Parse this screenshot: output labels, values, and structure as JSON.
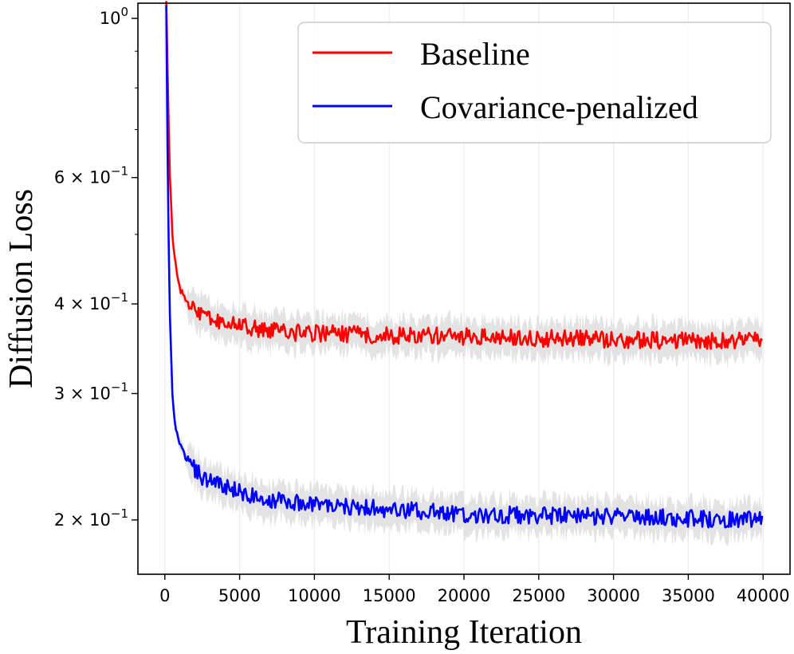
{
  "chart_data": {
    "type": "line",
    "xlabel": "Training Iteration",
    "ylabel": "Diffusion Loss",
    "xlim": [
      -1800,
      41800
    ],
    "ylim": [
      0.168,
      1.05
    ],
    "yscale": "log",
    "grid": "vertical",
    "legend_position": "top-right",
    "x_ticks": [
      0,
      5000,
      10000,
      15000,
      20000,
      25000,
      30000,
      35000,
      40000
    ],
    "x_tick_labels": [
      "0",
      "5000",
      "10000",
      "15000",
      "20000",
      "25000",
      "30000",
      "35000",
      "40000"
    ],
    "y_ticks": [
      {
        "value": 1.0,
        "base": "10",
        "exp": "0"
      },
      {
        "value": 0.6,
        "base": "6 × 10",
        "exp": "−1"
      },
      {
        "value": 0.4,
        "base": "4 × 10",
        "exp": "−1"
      },
      {
        "value": 0.3,
        "base": "3 × 10",
        "exp": "−1"
      },
      {
        "value": 0.2,
        "base": "2 × 10",
        "exp": "−1"
      }
    ],
    "y_minor_ticks": [
      0.9,
      0.8,
      0.7,
      0.5
    ],
    "series": [
      {
        "name": "Baseline",
        "color": "#ff0000",
        "band_color": "#e3e3e3",
        "x": [
          100,
          200,
          300,
          400,
          500,
          600,
          800,
          1000,
          1300,
          1600,
          2000,
          2500,
          3000,
          3500,
          4000,
          5000,
          6000,
          7000,
          8000,
          10000,
          12000,
          15000,
          18000,
          20000,
          25000,
          30000,
          35000,
          40000
        ],
        "values": [
          1.05,
          0.82,
          0.64,
          0.56,
          0.5,
          0.47,
          0.44,
          0.42,
          0.41,
          0.4,
          0.39,
          0.385,
          0.38,
          0.378,
          0.375,
          0.372,
          0.37,
          0.368,
          0.366,
          0.364,
          0.363,
          0.362,
          0.361,
          0.36,
          0.358,
          0.357,
          0.356,
          0.355
        ]
      },
      {
        "name": "Covariance-penalized",
        "color": "#0000ff",
        "band_color": "#e3e3e3",
        "x": [
          100,
          200,
          300,
          400,
          500,
          600,
          800,
          1000,
          1300,
          1600,
          2000,
          2500,
          3000,
          3500,
          4000,
          5000,
          6000,
          7000,
          8000,
          10000,
          12000,
          15000,
          18000,
          20000,
          25000,
          30000,
          35000,
          40000
        ],
        "values": [
          1.05,
          0.6,
          0.42,
          0.35,
          0.3,
          0.28,
          0.265,
          0.255,
          0.247,
          0.24,
          0.235,
          0.23,
          0.227,
          0.224,
          0.222,
          0.219,
          0.216,
          0.214,
          0.213,
          0.211,
          0.209,
          0.207,
          0.205,
          0.204,
          0.203,
          0.202,
          0.201,
          0.2
        ]
      }
    ]
  }
}
